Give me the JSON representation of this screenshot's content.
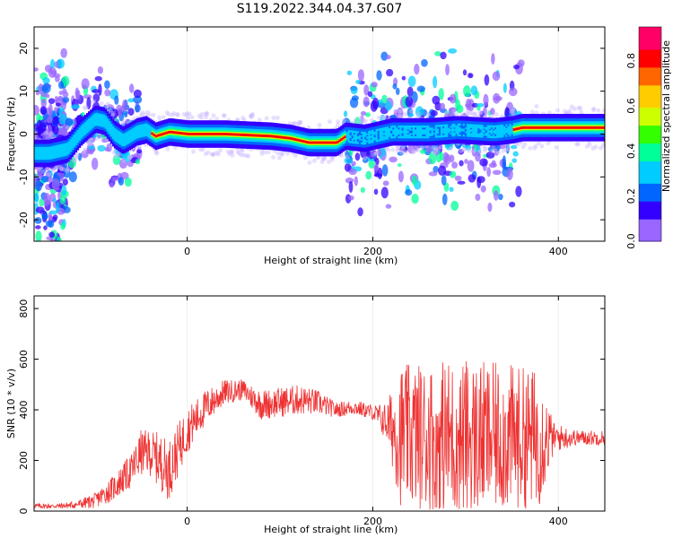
{
  "figure": {
    "title": "S119.2022.344.04.37.G07"
  },
  "chart_data": [
    {
      "type": "heatmap",
      "panel": "spectrogram",
      "title": "S119.2022.344.04.37.G07",
      "xlabel": "Height of straight line (km)",
      "ylabel": "Frequency (Hz)",
      "xlim": [
        -165,
        450
      ],
      "ylim": [
        -25,
        25
      ],
      "x_ticks": [
        0,
        200,
        400
      ],
      "y_ticks": [
        -20,
        -10,
        0,
        10,
        20
      ],
      "colorbar": {
        "label": "Normalized spectral amplitude",
        "range": [
          0.0,
          0.95
        ],
        "ticks": [
          0.0,
          0.2,
          0.4,
          0.6,
          0.8
        ],
        "colormap": "rainbow",
        "colors": [
          "#ffffff",
          "#9966ff",
          "#3300ff",
          "#0066ff",
          "#00ccff",
          "#00ff99",
          "#33ff00",
          "#ccff00",
          "#ffcc00",
          "#ff6600",
          "#ff0000",
          "#ff0066"
        ]
      },
      "ridge": [
        {
          "x": -165,
          "f": -4.5
        },
        {
          "x": -150,
          "f": -4.5
        },
        {
          "x": -130,
          "f": -3.5
        },
        {
          "x": -115,
          "f": 0.5
        },
        {
          "x": -100,
          "f": 3.5
        },
        {
          "x": -90,
          "f": 3.0
        },
        {
          "x": -80,
          "f": 0.0
        },
        {
          "x": -70,
          "f": -1.5
        },
        {
          "x": -55,
          "f": 0.5
        },
        {
          "x": -45,
          "f": 1.0
        },
        {
          "x": -35,
          "f": -0.5
        },
        {
          "x": -20,
          "f": 0.5
        },
        {
          "x": 0,
          "f": 0.0
        },
        {
          "x": 40,
          "f": 0.0
        },
        {
          "x": 90,
          "f": -0.5
        },
        {
          "x": 110,
          "f": -1.0
        },
        {
          "x": 130,
          "f": -2.0
        },
        {
          "x": 160,
          "f": -2.0
        },
        {
          "x": 170,
          "f": -0.5
        },
        {
          "x": 190,
          "f": -1.0
        },
        {
          "x": 220,
          "f": 0.5
        },
        {
          "x": 260,
          "f": 0.5
        },
        {
          "x": 290,
          "f": 1.0
        },
        {
          "x": 330,
          "f": 0.5
        },
        {
          "x": 350,
          "f": 1.0
        },
        {
          "x": 360,
          "f": 1.5
        },
        {
          "x": 400,
          "f": 1.5
        },
        {
          "x": 450,
          "f": 1.5
        }
      ],
      "scatter_regions": [
        {
          "x": [
            -165,
            -130
          ],
          "f": [
            -25,
            25
          ],
          "density": 0.35
        },
        {
          "x": [
            -130,
            -50
          ],
          "f": [
            -12,
            15
          ],
          "density": 0.2
        },
        {
          "x": [
            170,
            360
          ],
          "f": [
            -20,
            20
          ],
          "density": 0.45
        }
      ]
    },
    {
      "type": "line",
      "panel": "snr",
      "xlabel": "Height of straight line (km)",
      "ylabel": "SNR (10 * v/v)",
      "xlim": [
        -165,
        450
      ],
      "ylim": [
        0,
        850
      ],
      "x_ticks": [
        0,
        200,
        400
      ],
      "y_ticks": [
        0,
        200,
        400,
        600,
        800
      ],
      "line_color": "#ee3333",
      "series": [
        {
          "x": [
            -165,
            -140,
            -120,
            -100,
            -80,
            -60,
            -50,
            -40,
            -30,
            -20,
            0,
            20,
            40,
            60,
            80,
            100,
            120,
            140,
            160,
            180,
            200,
            215,
            230,
            260,
            290,
            320,
            350,
            380,
            395,
            420,
            450
          ],
          "values": [
            20,
            20,
            25,
            40,
            90,
            160,
            230,
            230,
            200,
            160,
            320,
            410,
            470,
            480,
            420,
            430,
            440,
            430,
            400,
            410,
            390,
            350,
            300,
            290,
            290,
            290,
            290,
            290,
            290,
            290,
            290
          ],
          "spread": [
            10,
            10,
            15,
            30,
            50,
            70,
            90,
            90,
            110,
            120,
            90,
            70,
            50,
            40,
            60,
            60,
            60,
            50,
            30,
            30,
            30,
            80,
            280,
            300,
            320,
            300,
            290,
            270,
            60,
            30,
            30
          ]
        }
      ]
    }
  ]
}
